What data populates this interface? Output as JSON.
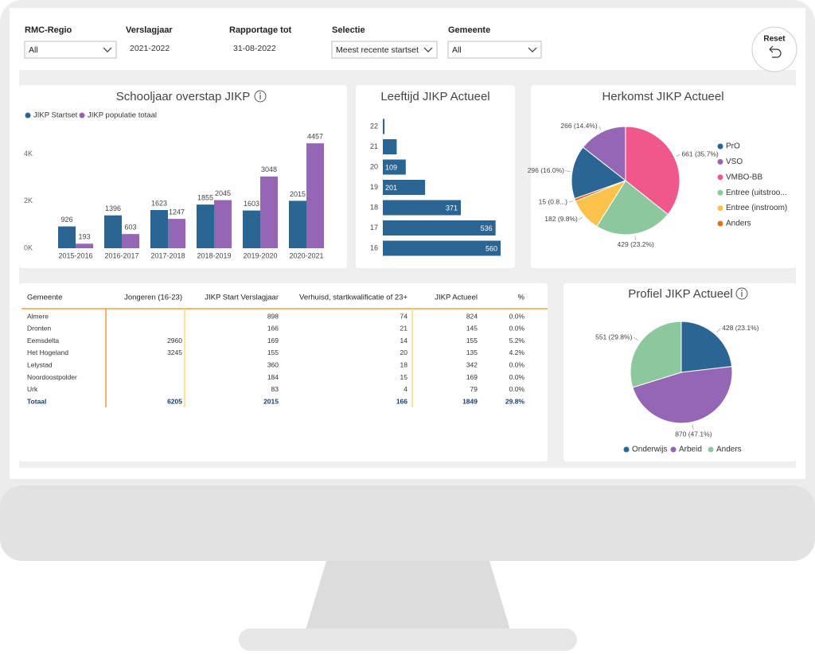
{
  "filters": [
    {
      "label": "RMC-Regio",
      "value": "All"
    },
    {
      "label": "Verslagjaar",
      "value": "2021-2022"
    },
    {
      "label": "Rapportage tot",
      "value": "31-08-2022"
    },
    {
      "label": "Selectie",
      "value": "Meest recente startset"
    },
    {
      "label": "Gemeente",
      "value": "All"
    }
  ],
  "reset": "Reset",
  "chart_data": [
    {
      "type": "bar",
      "title": "Schooljaar overstap JIKP",
      "categories": [
        "2015-2016",
        "2016-2017",
        "2017-2018",
        "2018-2019",
        "2019-2020",
        "2020-2021"
      ],
      "series": [
        {
          "name": "JIKP Startset",
          "color": "#2b6593",
          "values": [
            926,
            1396,
            1623,
            1855,
            1603,
            2015
          ]
        },
        {
          "name": "JIKP populatie totaal",
          "color": "#9466b4",
          "values": [
            193,
            603,
            1247,
            2045,
            3048,
            4457
          ]
        }
      ],
      "ylim": [
        0,
        4800
      ],
      "yticks": [
        {
          "value": 0,
          "label": "0K"
        },
        {
          "value": 2000,
          "label": "2K"
        },
        {
          "value": 4000,
          "label": "4K"
        }
      ],
      "grid": false
    },
    {
      "type": "bar",
      "horizontal": true,
      "title": "Leeftijd JIKP Actueel",
      "categories": [
        "22",
        "21",
        "20",
        "19",
        "18",
        "17",
        "16"
      ],
      "values": [
        8,
        66,
        109,
        201,
        371,
        536,
        560
      ],
      "color": "#2b6593",
      "xlim": [
        0,
        560
      ]
    },
    {
      "type": "pie",
      "title": "Herkomst JIKP Actueel",
      "categories": [
        "PrO",
        "VSO",
        "VMBO-BB",
        "Entree (uitstroo...",
        "Entree (instroom)",
        "Anders"
      ],
      "values": [
        296,
        266,
        661,
        429,
        182,
        15
      ],
      "value_labels": [
        "296 (16.0%)",
        "266 (14.4%)",
        "661 (35.7%)",
        "429 (23.2%)",
        "182 (9.8%)",
        "15 (0.8...)"
      ],
      "colors": [
        "#2b6593",
        "#9466b4",
        "#f0578a",
        "#8cc79e",
        "#fcc24c",
        "#e0711d"
      ]
    },
    {
      "type": "pie",
      "title": "Profiel JIKP Actueel",
      "categories": [
        "Onderwijs",
        "Arbeid",
        "Anders"
      ],
      "values": [
        428,
        870,
        551
      ],
      "value_labels": [
        "428 (23.1%)",
        "870 (47.1%)",
        "551 (29.8%)"
      ],
      "colors": [
        "#2b6593",
        "#9466b4",
        "#8cc79e"
      ]
    }
  ],
  "table": {
    "columns": [
      "Gemeente",
      "Jongeren (16-23)",
      "JIKP Start Verslagjaar",
      "Verhuisd, startkwalificatie of 23+",
      "JIKP Actueel",
      "%"
    ],
    "rows": [
      [
        "Almere",
        null,
        898,
        74,
        824,
        "0.0%"
      ],
      [
        "Dronten",
        null,
        166,
        21,
        145,
        "0.0%"
      ],
      [
        "Eemsdelta",
        2960,
        169,
        14,
        155,
        "5.2%"
      ],
      [
        "Het Hogeland",
        3245,
        155,
        20,
        135,
        "4.2%"
      ],
      [
        "Lelystad",
        null,
        360,
        18,
        342,
        "0.0%"
      ],
      [
        "Noordoostpolder",
        null,
        184,
        15,
        169,
        "0.0%"
      ],
      [
        "Urk",
        null,
        83,
        4,
        79,
        "0.0%"
      ]
    ],
    "total": [
      "Totaal",
      6205,
      2015,
      166,
      1849,
      "29.8%"
    ]
  }
}
